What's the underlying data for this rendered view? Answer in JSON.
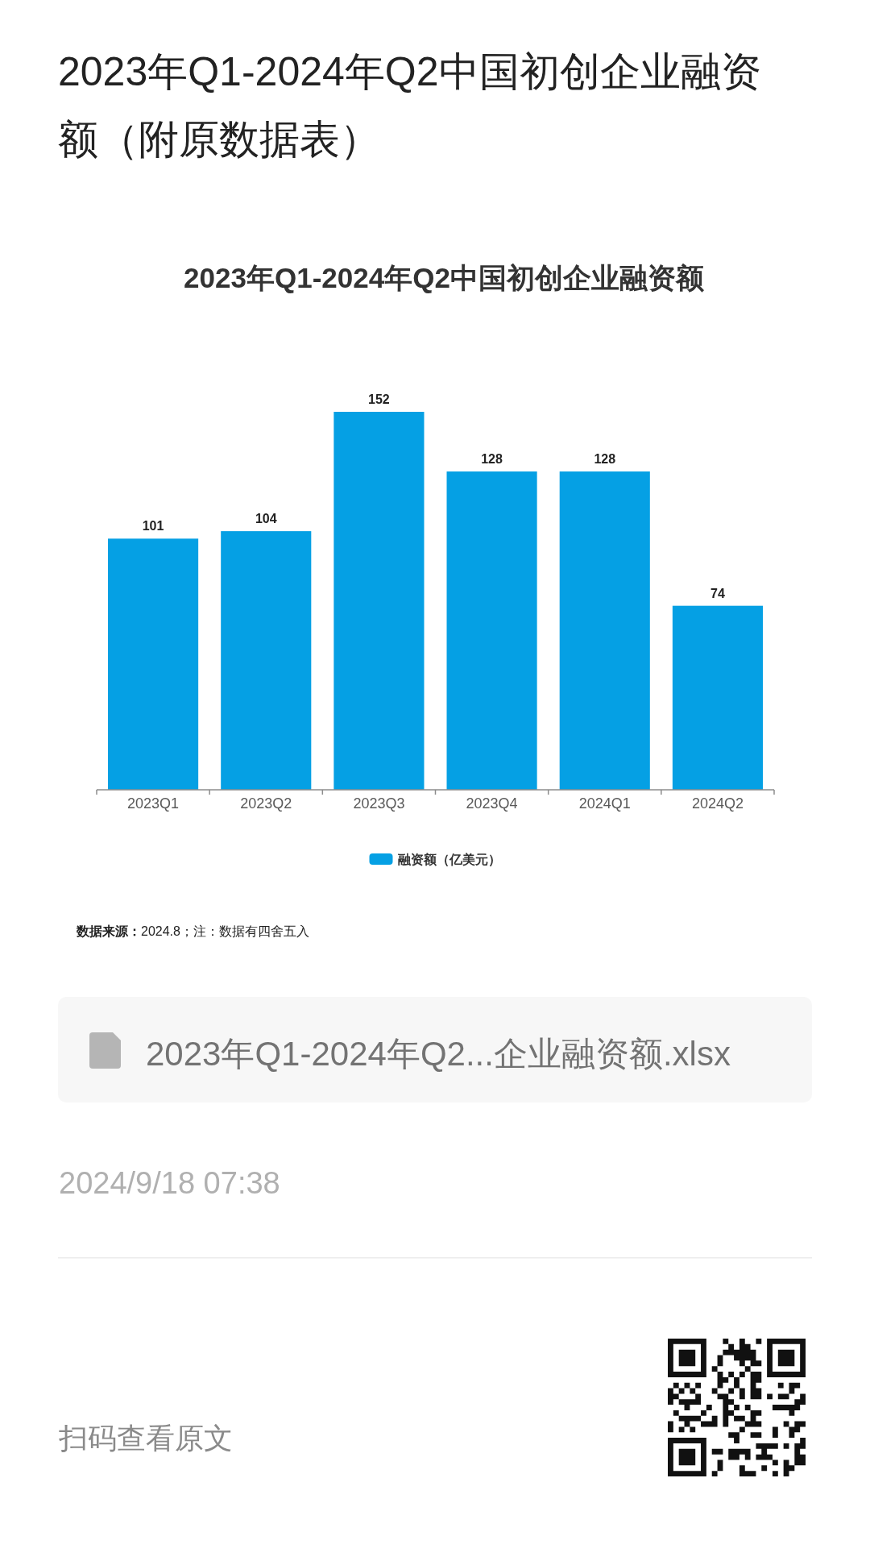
{
  "chart_data": {
    "type": "bar",
    "title": "2023年Q1-2024年Q2中国初创企业融资额（附原数据表）",
    "subtitle": "2023年Q1-2024年Q2中国初创企业融资额",
    "categories": [
      "2023Q1",
      "2023Q2",
      "2023Q3",
      "2023Q4",
      "2024Q1",
      "2024Q2"
    ],
    "series": [
      {
        "name": "融资额（亿美元）",
        "color": "#05a0e4",
        "values": [
          101,
          104,
          152,
          128,
          128,
          74
        ]
      }
    ],
    "data_labels": true,
    "legend": "bottom",
    "annotations": [
      "**数据来源：**2024.8；注：数据有四舍五入",
      "2023年Q1-2024年Q2...企业融资额.xlsx",
      "2024/9/18 07:38",
      "扫码查看原文"
    ]
  }
}
